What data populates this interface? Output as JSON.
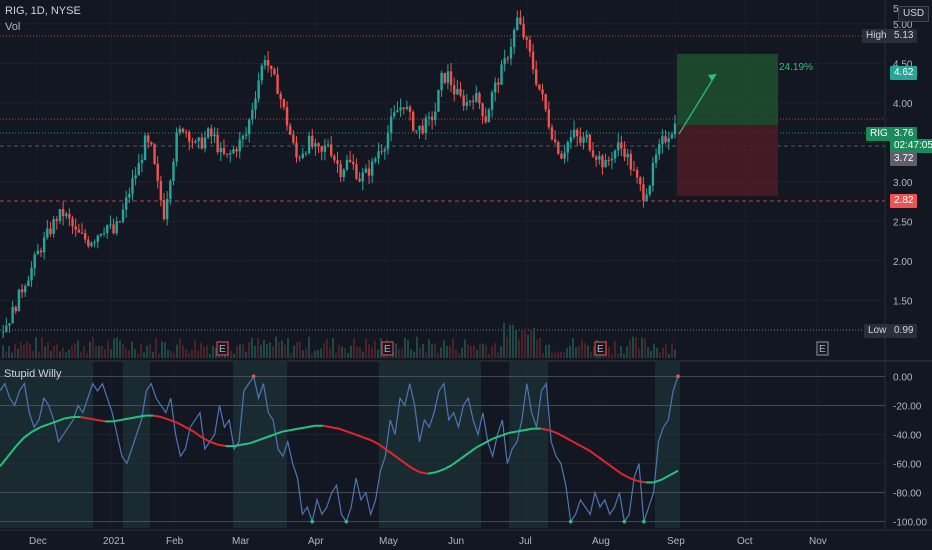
{
  "header": {
    "symbol_line": "RIG, 1D, NYSE",
    "vol_label": "Vol"
  },
  "currency_button": "USD",
  "price_scale_top": "5.",
  "indicator": {
    "name": "Stupid Willy"
  },
  "price_tags": {
    "high_label": "High",
    "high_value": "5.13",
    "target_value": "4.62",
    "symbol": "RIG",
    "last_value": "3.76",
    "countdown": "02:47:05",
    "prev_close": "3.72",
    "stop_value": "2.82",
    "low_label": "Low",
    "low_value": "0.99"
  },
  "position_tool": {
    "percent_label": "24.19%"
  },
  "earnings_marker": "E",
  "colors": {
    "background": "#131722",
    "up": "#26a69a",
    "down": "#ef5350",
    "osc_line": "#4e76b5",
    "trend_up": "#26c281",
    "trend_down": "#e0262e",
    "target_zone": "#1f4d2f",
    "stop_zone": "#4a1c26",
    "highlight": "#1f3d3d"
  },
  "chart_data": [
    {
      "type": "candlestick",
      "title": "RIG, 1D, NYSE",
      "y_ticks": [
        "5.00",
        "4.50",
        "4.00",
        "3.50",
        "3.00",
        "2.50",
        "2.00",
        "1.50"
      ],
      "y_tick_values": [
        5.0,
        4.5,
        4.0,
        3.5,
        3.0,
        2.5,
        2.0,
        1.5
      ],
      "ylim": [
        1.1,
        5.2
      ],
      "x_ticks": [
        "Dec",
        "2021",
        "Feb",
        "Mar",
        "Apr",
        "May",
        "Jun",
        "Jul",
        "Aug",
        "Sep",
        "Oct",
        "Nov"
      ],
      "price_path": [
        [
          0,
          1.1
        ],
        [
          2,
          1.2
        ],
        [
          4,
          1.35
        ],
        [
          6,
          1.55
        ],
        [
          8,
          1.75
        ],
        [
          10,
          1.9
        ],
        [
          12,
          2.1
        ],
        [
          14,
          2.25
        ],
        [
          16,
          2.4
        ],
        [
          18,
          2.55
        ],
        [
          20,
          2.6
        ],
        [
          22,
          2.5
        ],
        [
          24,
          2.35
        ],
        [
          26,
          2.3
        ],
        [
          28,
          2.25
        ],
        [
          30,
          2.3
        ],
        [
          32,
          2.4
        ],
        [
          34,
          2.45
        ],
        [
          36,
          2.35
        ],
        [
          38,
          2.5
        ],
        [
          40,
          2.75
        ],
        [
          42,
          3.0
        ],
        [
          44,
          3.2
        ],
        [
          46,
          3.5
        ],
        [
          48,
          3.4
        ],
        [
          50,
          2.95
        ],
        [
          52,
          2.6
        ],
        [
          54,
          3.1
        ],
        [
          56,
          3.55
        ],
        [
          58,
          3.7
        ],
        [
          60,
          3.6
        ],
        [
          62,
          3.45
        ],
        [
          64,
          3.5
        ],
        [
          66,
          3.6
        ],
        [
          68,
          3.55
        ],
        [
          70,
          3.35
        ],
        [
          72,
          3.3
        ],
        [
          74,
          3.4
        ],
        [
          76,
          3.5
        ],
        [
          78,
          3.6
        ],
        [
          80,
          3.95
        ],
        [
          82,
          4.3
        ],
        [
          84,
          4.6
        ],
        [
          86,
          4.35
        ],
        [
          88,
          4.2
        ],
        [
          90,
          3.9
        ],
        [
          92,
          3.6
        ],
        [
          94,
          3.3
        ],
        [
          96,
          3.4
        ],
        [
          98,
          3.5
        ],
        [
          100,
          3.4
        ],
        [
          102,
          3.35
        ],
        [
          104,
          3.5
        ],
        [
          106,
          3.3
        ],
        [
          108,
          3.15
        ],
        [
          110,
          3.25
        ],
        [
          112,
          3.2
        ],
        [
          114,
          3.05
        ],
        [
          116,
          3.1
        ],
        [
          118,
          3.2
        ],
        [
          120,
          3.4
        ],
        [
          122,
          3.5
        ],
        [
          124,
          3.75
        ],
        [
          126,
          3.9
        ],
        [
          128,
          4.0
        ],
        [
          130,
          3.8
        ],
        [
          132,
          3.65
        ],
        [
          134,
          3.7
        ],
        [
          136,
          3.75
        ],
        [
          138,
          3.9
        ],
        [
          140,
          4.3
        ],
        [
          142,
          4.35
        ],
        [
          144,
          4.15
        ],
        [
          146,
          4.05
        ],
        [
          148,
          4.0
        ],
        [
          150,
          4.1
        ],
        [
          152,
          4.0
        ],
        [
          154,
          3.8
        ],
        [
          156,
          4.1
        ],
        [
          158,
          4.3
        ],
        [
          160,
          4.5
        ],
        [
          162,
          4.75
        ],
        [
          164,
          5.05
        ],
        [
          166,
          4.85
        ],
        [
          168,
          4.6
        ],
        [
          170,
          4.3
        ],
        [
          172,
          4.05
        ],
        [
          174,
          3.75
        ],
        [
          176,
          3.5
        ],
        [
          178,
          3.35
        ],
        [
          180,
          3.5
        ],
        [
          182,
          3.6
        ],
        [
          184,
          3.5
        ],
        [
          186,
          3.55
        ],
        [
          188,
          3.4
        ],
        [
          190,
          3.3
        ],
        [
          192,
          3.2
        ],
        [
          194,
          3.35
        ],
        [
          196,
          3.45
        ],
        [
          198,
          3.4
        ],
        [
          200,
          3.2
        ],
        [
          202,
          3.0
        ],
        [
          204,
          2.85
        ],
        [
          206,
          3.0
        ],
        [
          208,
          3.3
        ],
        [
          210,
          3.5
        ],
        [
          212,
          3.62
        ],
        [
          214,
          3.72
        ]
      ],
      "events": {
        "earnings": [
          "Nov",
          "Mar",
          "Apr/May",
          "Aug",
          "Oct"
        ]
      },
      "long_position": {
        "entry": 3.72,
        "target": 4.62,
        "stop": 2.82,
        "gain_pct": 24.19
      }
    },
    {
      "type": "line",
      "title": "Stupid Willy",
      "y_ticks": [
        "0.00",
        "-20.00",
        "-40.00",
        "-60.00",
        "-80.00",
        "-100.00"
      ],
      "y_tick_values": [
        0,
        -20,
        -40,
        -60,
        -80,
        -100
      ],
      "ylim": [
        -103,
        3
      ],
      "levels": [
        0,
        -20,
        -80,
        -100
      ],
      "series": [
        {
          "values": [
            -10,
            -5,
            -15,
            -20,
            -10,
            -5,
            -25,
            -35,
            -30,
            -15,
            -20,
            -30,
            -45,
            -40,
            -35,
            -30,
            -20,
            -25,
            -15,
            -5,
            -10,
            -5,
            -15,
            -25,
            -40,
            -55,
            -60,
            -50,
            -40,
            -30,
            -10,
            -5,
            -15,
            -20,
            -25,
            -15,
            -40,
            -55,
            -50,
            -35,
            -30,
            -25,
            -50,
            -45,
            -40,
            -20,
            -35,
            -30,
            -50,
            -45,
            -10,
            -5,
            0,
            -15,
            -5,
            -25,
            -30,
            -50,
            -55,
            -45,
            -60,
            -70,
            -95,
            -90,
            -100,
            -85,
            -95,
            -90,
            -80,
            -75,
            -95,
            -100,
            -90,
            -70,
            -85,
            -80,
            -95,
            -85,
            -65,
            -55,
            -30,
            -40,
            -15,
            -20,
            -5,
            -20,
            -45,
            -30,
            -35,
            -25,
            -10,
            -5,
            -30,
            -25,
            -35,
            -20,
            -15,
            -30,
            -40,
            -25,
            -45,
            -55,
            -40,
            -30,
            -60,
            -50,
            -45,
            -30,
            -5,
            -25,
            -35,
            -10,
            -5,
            -45,
            -55,
            -60,
            -75,
            -100,
            -95,
            -85,
            -90,
            -95,
            -80,
            -90,
            -85,
            -95,
            -90,
            -80,
            -100,
            -95,
            -70,
            -60,
            -100,
            -90,
            -80,
            -45,
            -35,
            -30,
            -10,
            0
          ]
        },
        {
          "values": [
            -62,
            -55,
            -48,
            -42,
            -38,
            -35,
            -33,
            -31,
            -29,
            -28,
            -28,
            -29,
            -30,
            -31,
            -31,
            -30,
            -29,
            -28,
            -27,
            -27,
            -28,
            -30,
            -32,
            -35,
            -38,
            -42,
            -45,
            -47,
            -48,
            -48,
            -47,
            -46,
            -44,
            -42,
            -40,
            -38,
            -37,
            -36,
            -35,
            -34,
            -34,
            -35,
            -36,
            -38,
            -40,
            -42,
            -44,
            -47,
            -51,
            -55,
            -59,
            -63,
            -66,
            -67,
            -66,
            -64,
            -61,
            -57,
            -53,
            -49,
            -46,
            -43,
            -41,
            -39,
            -38,
            -37,
            -36,
            -36,
            -37,
            -39,
            -42,
            -45,
            -48,
            -51,
            -55,
            -59,
            -63,
            -67,
            -70,
            -72,
            -73,
            -73,
            -71,
            -68,
            -65
          ]
        }
      ],
      "x_ticks": [
        "Dec",
        "2021",
        "Feb",
        "Mar",
        "Apr",
        "May",
        "Jun",
        "Jul",
        "Aug",
        "Sep",
        "Oct",
        "Nov"
      ]
    }
  ]
}
